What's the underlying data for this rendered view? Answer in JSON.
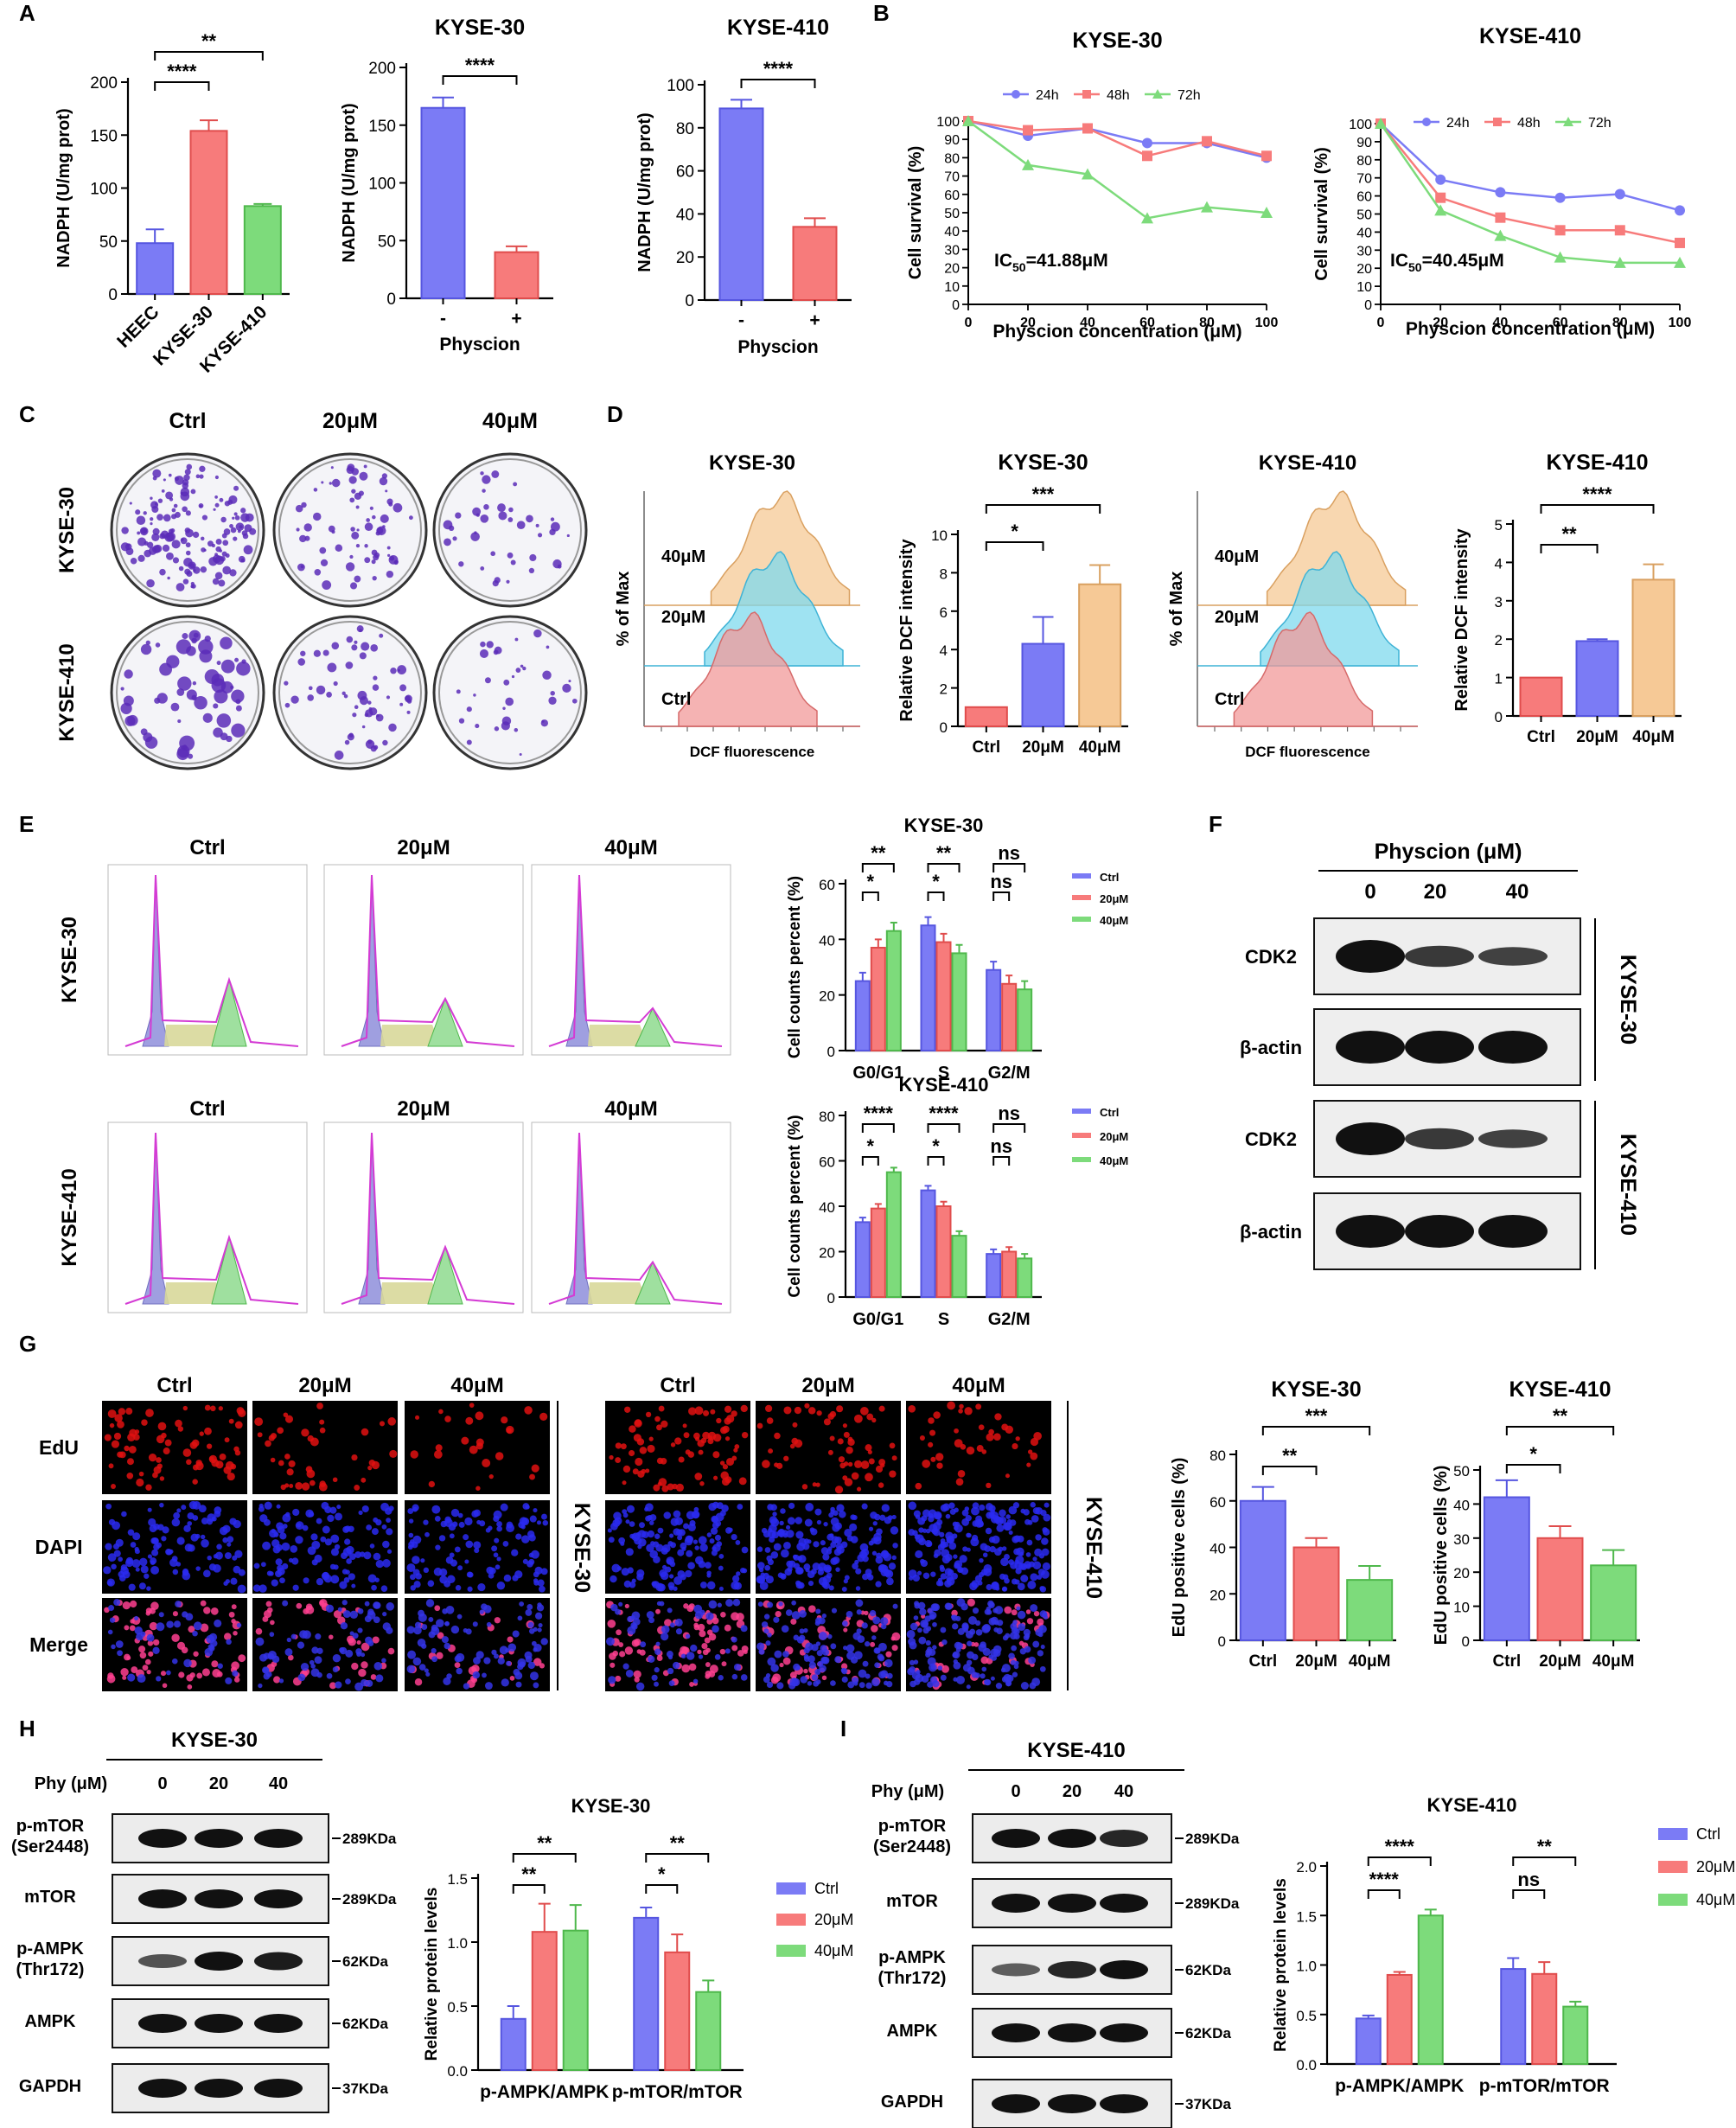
{
  "colors": {
    "blue": "#7b7bf5",
    "red": "#f77b7b",
    "green": "#7ddb7b",
    "orange": "#f6c996",
    "cyan": "#7fd9ee",
    "pink": "#f29a9a"
  },
  "panelA": {
    "label": "A",
    "chart1": {
      "ylabel": "NADPH (U/mg prot)",
      "ylim": [
        0,
        200
      ],
      "yticks": [
        "0",
        "50",
        "100",
        "150",
        "200"
      ],
      "categories": [
        "HEEC",
        "KYSE-30",
        "KYSE-410"
      ],
      "values": [
        48,
        154,
        83
      ],
      "errors": [
        13,
        10,
        2
      ],
      "sig": [
        "****",
        "**"
      ]
    },
    "chart2": {
      "title": "KYSE-30",
      "ylabel": "NADPH (U/mg prot)",
      "ylim": [
        0,
        200
      ],
      "yticks": [
        "0",
        "50",
        "100",
        "150",
        "200"
      ],
      "categories": [
        "-",
        "+"
      ],
      "values": [
        165,
        40
      ],
      "errors": [
        9,
        5
      ],
      "xlabel": "Physcion",
      "sig": [
        "****"
      ]
    },
    "chart3": {
      "title": "KYSE-410",
      "ylabel": "NADPH (U/mg prot)",
      "ylim": [
        0,
        100
      ],
      "yticks": [
        "0",
        "20",
        "40",
        "60",
        "80",
        "100"
      ],
      "categories": [
        "-",
        "+"
      ],
      "values": [
        89,
        34
      ],
      "errors": [
        4,
        4
      ],
      "xlabel": "Physcion",
      "sig": [
        "****"
      ]
    }
  },
  "panelB": {
    "label": "B",
    "chart1": {
      "title": "KYSE-30",
      "ylabel": "Cell survival (%)",
      "xlabel": "Physcion concentration (μM)",
      "x": [
        0,
        20,
        40,
        60,
        80,
        100
      ],
      "xticks": [
        "0",
        "20",
        "40",
        "60",
        "80",
        "100"
      ],
      "yticks": [
        "0",
        "10",
        "20",
        "30",
        "40",
        "50",
        "60",
        "70",
        "80",
        "90",
        "100"
      ],
      "legend": [
        "24h",
        "48h",
        "72h"
      ],
      "ic50_prefix": "IC",
      "ic50_sub": "50",
      "ic50_value": "=41.88μM",
      "series": [
        {
          "name": "24h",
          "values": [
            100,
            92,
            96,
            88,
            88,
            80
          ]
        },
        {
          "name": "48h",
          "values": [
            100,
            95,
            96,
            81,
            89,
            81
          ]
        },
        {
          "name": "72h",
          "values": [
            100,
            76,
            71,
            47,
            53,
            50
          ]
        }
      ]
    },
    "chart2": {
      "title": "KYSE-410",
      "ylabel": "Cell survival (%)",
      "xlabel": "Physcion concentration (μM)",
      "x": [
        0,
        20,
        40,
        60,
        80,
        100
      ],
      "xticks": [
        "0",
        "20",
        "40",
        "60",
        "80",
        "100"
      ],
      "yticks": [
        "0",
        "10",
        "20",
        "30",
        "40",
        "50",
        "60",
        "70",
        "80",
        "90",
        "100"
      ],
      "legend": [
        "24h",
        "48h",
        "72h"
      ],
      "ic50_prefix": "IC",
      "ic50_sub": "50",
      "ic50_value": "=40.45μM",
      "series": [
        {
          "name": "24h",
          "values": [
            100,
            69,
            62,
            59,
            61,
            52
          ]
        },
        {
          "name": "48h",
          "values": [
            100,
            59,
            48,
            41,
            41,
            34
          ]
        },
        {
          "name": "72h",
          "values": [
            100,
            52,
            38,
            26,
            23,
            23
          ]
        }
      ]
    }
  },
  "panelC": {
    "label": "C",
    "cols": [
      "Ctrl",
      "20μM",
      "40μM"
    ],
    "rows": [
      "KYSE-30",
      "KYSE-410"
    ]
  },
  "panelD": {
    "label": "D",
    "flow1": {
      "title": "KYSE-30",
      "ylabel": "% of Max",
      "xlabel": "DCF fluorescence",
      "labels": [
        "40μM",
        "20μM",
        "Ctrl"
      ]
    },
    "flow2": {
      "title": "KYSE-410",
      "ylabel": "% of Max",
      "xlabel": "DCF fluorescence",
      "labels": [
        "40μM",
        "20μM",
        "Ctrl"
      ]
    },
    "bar1": {
      "title": "KYSE-30",
      "ylabel": "Relative DCF  intensity",
      "yticks": [
        "0",
        "2",
        "4",
        "6",
        "8",
        "10"
      ],
      "ylim": [
        0,
        10
      ],
      "categories": [
        "Ctrl",
        "20μM",
        "40μM"
      ],
      "values": [
        1.0,
        4.3,
        7.4
      ],
      "errors": [
        0,
        1.4,
        1.0
      ],
      "sig": [
        "*",
        "***"
      ]
    },
    "bar2": {
      "title": "KYSE-410",
      "ylabel": "Relative DCF  intensity",
      "yticks": [
        "0",
        "1",
        "2",
        "3",
        "4",
        "5"
      ],
      "ylim": [
        0,
        5
      ],
      "categories": [
        "Ctrl",
        "20μM",
        "40μM"
      ],
      "values": [
        1.0,
        1.95,
        3.55
      ],
      "errors": [
        0,
        0.05,
        0.4
      ],
      "sig": [
        "**",
        "****"
      ]
    }
  },
  "panelE": {
    "label": "E",
    "cols": [
      "Ctrl",
      "20μM",
      "40μM"
    ],
    "rows": [
      "KYSE-30",
      "KYSE-410"
    ],
    "bar1": {
      "title": "KYSE-30",
      "ylabel": "Cell counts percent (%)",
      "yticks": [
        "0",
        "20",
        "40",
        "60"
      ],
      "ylim": [
        0,
        60
      ],
      "categories": [
        "G0/G1",
        "S",
        "G2/M"
      ],
      "legend": [
        "Ctrl",
        "20μM",
        "40μM"
      ],
      "series": [
        {
          "name": "Ctrl",
          "values": [
            25,
            45,
            29
          ]
        },
        {
          "name": "20μM",
          "values": [
            37,
            39,
            24
          ]
        },
        {
          "name": "40μM",
          "values": [
            43,
            35,
            22
          ]
        }
      ],
      "sig_inner": [
        "*",
        "*",
        "ns"
      ],
      "sig_outer": [
        "**",
        "**",
        "ns"
      ]
    },
    "bar2": {
      "title": "KYSE-410",
      "ylabel": "Cell counts percent (%)",
      "yticks": [
        "0",
        "20",
        "40",
        "60",
        "80"
      ],
      "ylim": [
        0,
        80
      ],
      "categories": [
        "G0/G1",
        "S",
        "G2/M"
      ],
      "legend": [
        "Ctrl",
        "20μM",
        "40μM"
      ],
      "series": [
        {
          "name": "Ctrl",
          "values": [
            33,
            47,
            19
          ]
        },
        {
          "name": "20μM",
          "values": [
            39,
            40,
            20
          ]
        },
        {
          "name": "40μM",
          "values": [
            55,
            27,
            17
          ]
        }
      ],
      "sig_inner": [
        "*",
        "*",
        "ns"
      ],
      "sig_outer": [
        "****",
        "****",
        "ns"
      ]
    }
  },
  "panelF": {
    "label": "F",
    "header": "Physcion (μM)",
    "doses": [
      "0",
      "20",
      "40"
    ],
    "blots": [
      "CDK2",
      "β-actin",
      "CDK2",
      "β-actin"
    ],
    "groups": [
      "KYSE-30",
      "KYSE-410"
    ]
  },
  "panelG": {
    "label": "G",
    "cols": [
      "Ctrl",
      "20μM",
      "40μM"
    ],
    "rows": [
      "EdU",
      "DAPI",
      "Merge"
    ],
    "groups": [
      "KYSE-30",
      "KYSE-410"
    ],
    "bar1": {
      "title": "KYSE-30",
      "ylabel": "EdU positive cells  (%)",
      "yticks": [
        "0",
        "20",
        "40",
        "60",
        "80"
      ],
      "ylim": [
        0,
        80
      ],
      "categories": [
        "Ctrl",
        "20μM",
        "40μM"
      ],
      "values": [
        60,
        40,
        26
      ],
      "errors": [
        6,
        4,
        6
      ],
      "sig": [
        "**",
        "***"
      ]
    },
    "bar2": {
      "title": "KYSE-410",
      "ylabel": "EdU positive cells  (%)",
      "yticks": [
        "0",
        "10",
        "20",
        "30",
        "40",
        "50"
      ],
      "ylim": [
        0,
        50
      ],
      "categories": [
        "Ctrl",
        "20μM",
        "40μM"
      ],
      "values": [
        42,
        30,
        22
      ],
      "errors": [
        5,
        3.5,
        4.5
      ],
      "sig": [
        "*",
        "**"
      ]
    }
  },
  "panelH": {
    "label": "H",
    "title": "KYSE-30",
    "phy_label": "Phy (μM)",
    "doses": [
      "0",
      "20",
      "40"
    ],
    "rows": [
      "p-mTOR\n(Ser2448)",
      "mTOR",
      "p-AMPK\n(Thr172)",
      "AMPK",
      "GAPDH"
    ],
    "sizes": [
      "289KDa",
      "289KDa",
      "62KDa",
      "62KDa",
      "37KDa"
    ],
    "bar": {
      "title": "KYSE-30",
      "ylabel": "Relative protein levels",
      "yticks": [
        "0.0",
        "0.5",
        "1.0",
        "1.5"
      ],
      "ylim": [
        0,
        1.5
      ],
      "categories": [
        "p-AMPK/AMPK",
        "p-mTOR/mTOR"
      ],
      "legend": [
        "Ctrl",
        "20μM",
        "40μM"
      ],
      "series": [
        {
          "name": "Ctrl",
          "values": [
            0.4,
            1.19
          ],
          "errors": [
            0.1,
            0.08
          ]
        },
        {
          "name": "20μM",
          "values": [
            1.08,
            0.92
          ],
          "errors": [
            0.22,
            0.14
          ]
        },
        {
          "name": "40μM",
          "values": [
            1.09,
            0.61
          ],
          "errors": [
            0.2,
            0.09
          ]
        }
      ],
      "sig_inner": [
        "**",
        "*"
      ],
      "sig_outer": [
        "**",
        "**"
      ]
    }
  },
  "panelI": {
    "label": "I",
    "title": "KYSE-410",
    "phy_label": "Phy (μM)",
    "doses": [
      "0",
      "20",
      "40"
    ],
    "rows": [
      "p-mTOR\n(Ser2448)",
      "mTOR",
      "p-AMPK\n(Thr172)",
      "AMPK",
      "GAPDH"
    ],
    "sizes": [
      "289KDa",
      "289KDa",
      "62KDa",
      "62KDa",
      "37KDa"
    ],
    "bar": {
      "title": "KYSE-410",
      "ylabel": "Relative protein levels",
      "yticks": [
        "0.0",
        "0.5",
        "1.0",
        "1.5",
        "2.0"
      ],
      "ylim": [
        0,
        2.0
      ],
      "categories": [
        "p-AMPK/AMPK",
        "p-mTOR/mTOR"
      ],
      "legend": [
        "Ctrl",
        "20μM",
        "40μM"
      ],
      "series": [
        {
          "name": "Ctrl",
          "values": [
            0.46,
            0.96
          ],
          "errors": [
            0.03,
            0.11
          ]
        },
        {
          "name": "20μM",
          "values": [
            0.9,
            0.91
          ],
          "errors": [
            0.03,
            0.12
          ]
        },
        {
          "name": "40μM",
          "values": [
            1.5,
            0.58
          ],
          "errors": [
            0.06,
            0.05
          ]
        }
      ],
      "sig_inner": [
        "****",
        "ns"
      ],
      "sig_outer": [
        "****",
        "**"
      ]
    }
  },
  "chart_data": [
    {
      "type": "bar",
      "title": "",
      "ylabel": "NADPH (U/mg prot)",
      "categories": [
        "HEEC",
        "KYSE-30",
        "KYSE-410"
      ],
      "values": [
        48,
        154,
        83
      ],
      "ylim": [
        0,
        200
      ]
    },
    {
      "type": "bar",
      "title": "KYSE-30",
      "ylabel": "NADPH (U/mg prot)",
      "xlabel": "Physcion",
      "categories": [
        "-",
        "+"
      ],
      "values": [
        165,
        40
      ],
      "ylim": [
        0,
        200
      ]
    },
    {
      "type": "bar",
      "title": "KYSE-410",
      "ylabel": "NADPH (U/mg prot)",
      "xlabel": "Physcion",
      "categories": [
        "-",
        "+"
      ],
      "values": [
        89,
        34
      ],
      "ylim": [
        0,
        100
      ]
    },
    {
      "type": "line",
      "title": "KYSE-30",
      "ylabel": "Cell survival (%)",
      "xlabel": "Physcion concentration (μM)",
      "x": [
        0,
        20,
        40,
        60,
        80,
        100
      ],
      "series": [
        {
          "name": "24h",
          "values": [
            100,
            92,
            96,
            88,
            88,
            80
          ]
        },
        {
          "name": "48h",
          "values": [
            100,
            95,
            96,
            81,
            89,
            81
          ]
        },
        {
          "name": "72h",
          "values": [
            100,
            76,
            71,
            47,
            53,
            50
          ]
        }
      ]
    },
    {
      "type": "line",
      "title": "KYSE-410",
      "ylabel": "Cell survival (%)",
      "xlabel": "Physcion concentration (μM)",
      "x": [
        0,
        20,
        40,
        60,
        80,
        100
      ],
      "series": [
        {
          "name": "24h",
          "values": [
            100,
            69,
            62,
            59,
            61,
            52
          ]
        },
        {
          "name": "48h",
          "values": [
            100,
            59,
            48,
            41,
            41,
            34
          ]
        },
        {
          "name": "72h",
          "values": [
            100,
            52,
            38,
            26,
            23,
            23
          ]
        }
      ]
    },
    {
      "type": "bar",
      "title": "KYSE-30",
      "ylabel": "Relative DCF  intensity",
      "categories": [
        "Ctrl",
        "20μM",
        "40μM"
      ],
      "values": [
        1.0,
        4.3,
        7.4
      ],
      "ylim": [
        0,
        10
      ]
    },
    {
      "type": "bar",
      "title": "KYSE-410",
      "ylabel": "Relative DCF  intensity",
      "categories": [
        "Ctrl",
        "20μM",
        "40μM"
      ],
      "values": [
        1.0,
        1.95,
        3.55
      ],
      "ylim": [
        0,
        5
      ]
    },
    {
      "type": "bar",
      "title": "KYSE-30",
      "ylabel": "Cell counts percent (%)",
      "categories": [
        "G0/G1",
        "S",
        "G2/M"
      ],
      "series": [
        {
          "name": "Ctrl",
          "values": [
            25,
            45,
            29
          ]
        },
        {
          "name": "20μM",
          "values": [
            37,
            39,
            24
          ]
        },
        {
          "name": "40μM",
          "values": [
            43,
            35,
            22
          ]
        }
      ],
      "ylim": [
        0,
        60
      ]
    },
    {
      "type": "bar",
      "title": "KYSE-410",
      "ylabel": "Cell counts percent (%)",
      "categories": [
        "G0/G1",
        "S",
        "G2/M"
      ],
      "series": [
        {
          "name": "Ctrl",
          "values": [
            33,
            47,
            19
          ]
        },
        {
          "name": "20μM",
          "values": [
            39,
            40,
            20
          ]
        },
        {
          "name": "40μM",
          "values": [
            55,
            27,
            17
          ]
        }
      ],
      "ylim": [
        0,
        80
      ]
    },
    {
      "type": "bar",
      "title": "KYSE-30",
      "ylabel": "EdU positive cells  (%)",
      "categories": [
        "Ctrl",
        "20μM",
        "40μM"
      ],
      "values": [
        60,
        40,
        26
      ],
      "ylim": [
        0,
        80
      ]
    },
    {
      "type": "bar",
      "title": "KYSE-410",
      "ylabel": "EdU positive cells  (%)",
      "categories": [
        "Ctrl",
        "20μM",
        "40μM"
      ],
      "values": [
        42,
        30,
        22
      ],
      "ylim": [
        0,
        50
      ]
    },
    {
      "type": "bar",
      "title": "KYSE-30",
      "ylabel": "Relative protein levels",
      "categories": [
        "p-AMPK/AMPK",
        "p-mTOR/mTOR"
      ],
      "series": [
        {
          "name": "Ctrl",
          "values": [
            0.4,
            1.19
          ]
        },
        {
          "name": "20μM",
          "values": [
            1.08,
            0.92
          ]
        },
        {
          "name": "40μM",
          "values": [
            1.09,
            0.61
          ]
        }
      ],
      "ylim": [
        0,
        1.5
      ]
    },
    {
      "type": "bar",
      "title": "KYSE-410",
      "ylabel": "Relative protein levels",
      "categories": [
        "p-AMPK/AMPK",
        "p-mTOR/mTOR"
      ],
      "series": [
        {
          "name": "Ctrl",
          "values": [
            0.46,
            0.96
          ]
        },
        {
          "name": "20μM",
          "values": [
            0.9,
            0.91
          ]
        },
        {
          "name": "40μM",
          "values": [
            1.5,
            0.58
          ]
        }
      ],
      "ylim": [
        0,
        2.0
      ]
    }
  ]
}
